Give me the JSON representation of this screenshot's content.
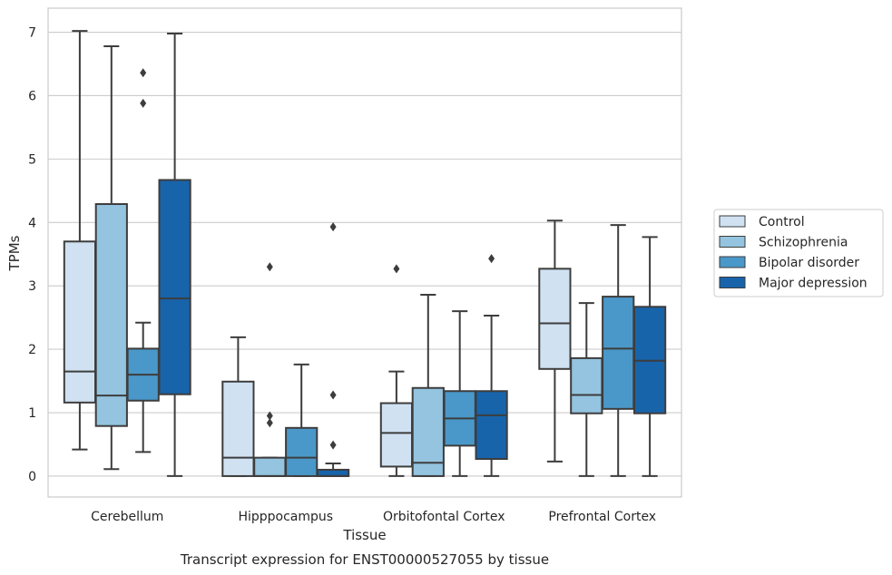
{
  "chart_data": {
    "type": "box",
    "title": "",
    "caption": "Transcript expression for ENST00000527055 by tissue",
    "xlabel": "Tissue",
    "ylabel": "TPMs",
    "ylim": [
      -0.33,
      7.38
    ],
    "yticks": [
      0,
      1,
      2,
      3,
      4,
      5,
      6,
      7
    ],
    "grid": "horizontal",
    "legend_position": "right",
    "categories": [
      "Cerebellum",
      "Hipppocampus",
      "Orbitofontal Cortex",
      "Prefrontal Cortex"
    ],
    "series": [
      {
        "name": "Control",
        "color": "#d0e1f2",
        "boxes": [
          {
            "whislo": 0.42,
            "q1": 1.16,
            "med": 1.65,
            "q3": 3.7,
            "whishi": 7.02,
            "fliers": []
          },
          {
            "whislo": 0.0,
            "q1": 0.0,
            "med": 0.29,
            "q3": 1.49,
            "whishi": 2.19,
            "fliers": []
          },
          {
            "whislo": 0.0,
            "q1": 0.15,
            "med": 0.68,
            "q3": 1.15,
            "whishi": 1.65,
            "fliers": [
              3.27
            ]
          },
          {
            "whislo": 0.23,
            "q1": 1.69,
            "med": 2.41,
            "q3": 3.27,
            "whishi": 4.03,
            "fliers": []
          }
        ]
      },
      {
        "name": "Schizophrenia",
        "color": "#94c4df",
        "boxes": [
          {
            "whislo": 0.11,
            "q1": 0.79,
            "med": 1.27,
            "q3": 4.29,
            "whishi": 6.78,
            "fliers": []
          },
          {
            "whislo": 0.0,
            "q1": 0.0,
            "med": 0.0,
            "q3": 0.29,
            "whishi": 0.29,
            "fliers": [
              0.84,
              0.95,
              3.3
            ]
          },
          {
            "whislo": 0.0,
            "q1": 0.0,
            "med": 0.21,
            "q3": 1.39,
            "whishi": 2.86,
            "fliers": []
          },
          {
            "whislo": 0.0,
            "q1": 0.99,
            "med": 1.28,
            "q3": 1.86,
            "whishi": 2.73,
            "fliers": []
          }
        ]
      },
      {
        "name": "Bipolar disorder",
        "color": "#4a98c9",
        "boxes": [
          {
            "whislo": 0.38,
            "q1": 1.19,
            "med": 1.6,
            "q3": 2.01,
            "whishi": 2.42,
            "fliers": [
              5.88,
              6.36
            ]
          },
          {
            "whislo": 0.0,
            "q1": 0.0,
            "med": 0.29,
            "q3": 0.76,
            "whishi": 1.76,
            "fliers": []
          },
          {
            "whislo": 0.0,
            "q1": 0.48,
            "med": 0.91,
            "q3": 1.34,
            "whishi": 2.6,
            "fliers": []
          },
          {
            "whislo": 0.0,
            "q1": 1.06,
            "med": 2.01,
            "q3": 2.83,
            "whishi": 3.96,
            "fliers": []
          }
        ]
      },
      {
        "name": "Major depression",
        "color": "#1764ab",
        "boxes": [
          {
            "whislo": 0.0,
            "q1": 1.29,
            "med": 2.8,
            "q3": 4.67,
            "whishi": 6.98,
            "fliers": []
          },
          {
            "whislo": 0.0,
            "q1": 0.0,
            "med": 0.0,
            "q3": 0.1,
            "whishi": 0.2,
            "fliers": [
              0.49,
              1.28,
              3.93
            ]
          },
          {
            "whislo": 0.0,
            "q1": 0.27,
            "med": 0.96,
            "q3": 1.34,
            "whishi": 2.53,
            "fliers": [
              3.43
            ]
          },
          {
            "whislo": 0.0,
            "q1": 0.99,
            "med": 1.82,
            "q3": 2.67,
            "whishi": 3.77,
            "fliers": []
          }
        ]
      }
    ]
  }
}
